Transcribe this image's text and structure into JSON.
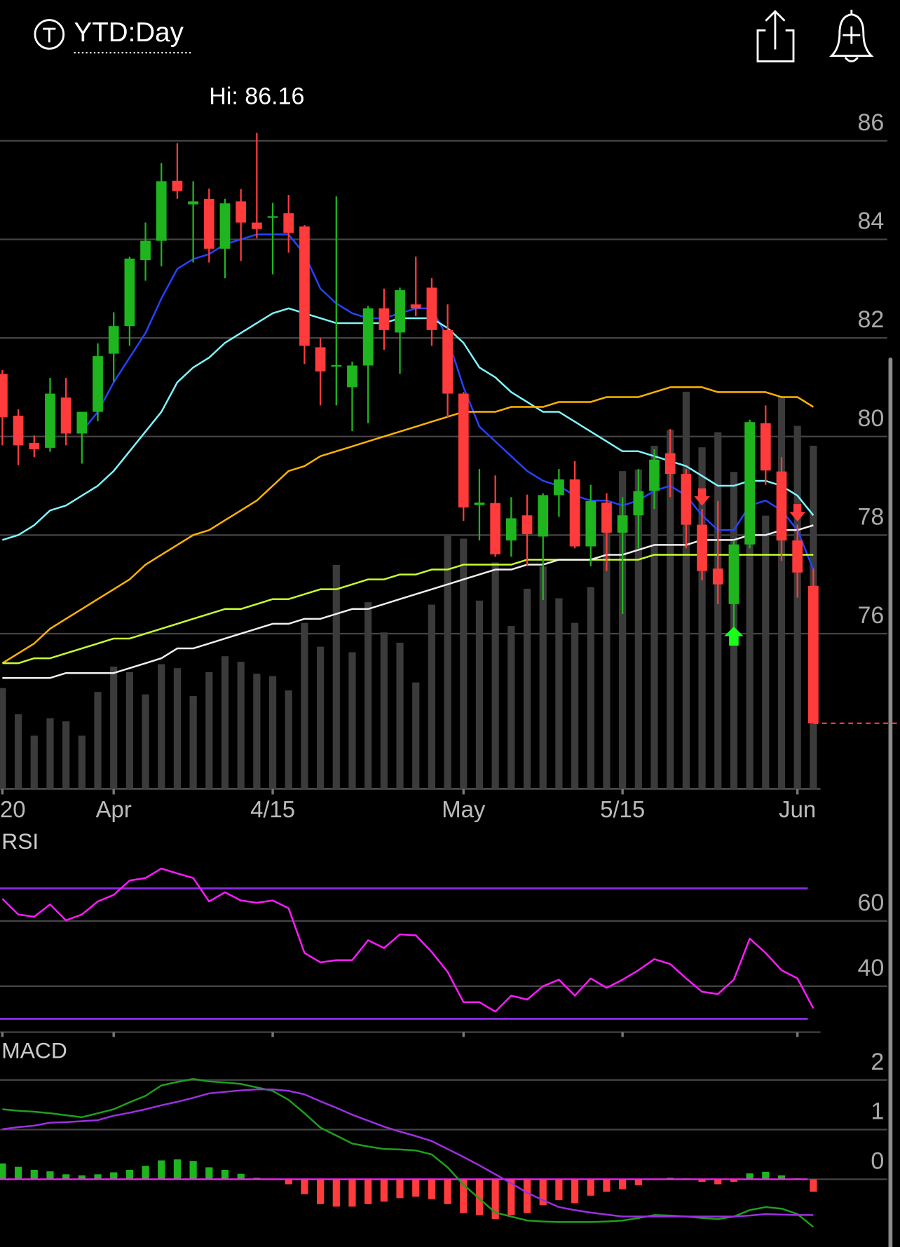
{
  "header": {
    "range_label": "YTD:Day"
  },
  "chart_data": [
    {
      "type": "candlestick",
      "hi_label": "Hi: 86.16",
      "categories": [
        "20",
        null,
        null,
        null,
        null,
        null,
        null,
        "Apr",
        null,
        null,
        null,
        null,
        null,
        null,
        null,
        null,
        null,
        "4/15",
        null,
        null,
        null,
        null,
        null,
        null,
        null,
        null,
        null,
        null,
        null,
        "May",
        null,
        null,
        null,
        null,
        null,
        null,
        null,
        null,
        null,
        "5/15",
        null,
        null,
        null,
        null,
        null,
        null,
        null,
        null,
        null,
        null,
        "Jun",
        null
      ],
      "open": [
        81.27,
        80.42,
        79.87,
        79.77,
        80.79,
        80.06,
        80.5,
        81.68,
        82.24,
        83.58,
        83.97,
        85.19,
        84.71,
        84.82,
        83.81,
        84.77,
        84.34,
        84.44,
        84.53,
        84.26,
        81.81,
        81.42,
        81.0,
        81.44,
        82.6,
        82.11,
        82.68,
        83.02,
        82.16,
        80.87,
        78.61,
        78.65,
        77.89,
        78.4,
        77.97,
        78.81,
        79.13,
        77.77,
        78.66,
        78.05,
        78.4,
        78.9,
        79.66,
        79.24,
        78.21,
        77.32,
        76.6,
        77.81,
        80.27,
        79.29,
        77.89,
        76.97
      ],
      "high": [
        81.35,
        80.55,
        80.02,
        81.19,
        81.19,
        80.5,
        81.89,
        82.52,
        83.65,
        84.34,
        85.55,
        85.95,
        85.18,
        85.03,
        84.82,
        85.02,
        86.16,
        84.74,
        84.9,
        84.29,
        82.0,
        84.87,
        81.52,
        82.65,
        83.0,
        83.02,
        83.65,
        83.21,
        82.68,
        80.9,
        79.34,
        79.21,
        78.77,
        78.82,
        78.85,
        79.34,
        79.5,
        79.02,
        78.85,
        78.77,
        79.34,
        79.74,
        80.15,
        79.34,
        78.53,
        78.69,
        77.89,
        80.34,
        80.63,
        79.58,
        78.21,
        77.32
      ],
      "low": [
        79.82,
        79.42,
        79.58,
        79.69,
        79.82,
        79.45,
        80.31,
        81.11,
        81.84,
        83.16,
        83.45,
        84.82,
        83.53,
        83.53,
        83.21,
        83.56,
        84.02,
        83.29,
        83.73,
        81.47,
        80.63,
        80.63,
        80.11,
        80.27,
        81.76,
        81.27,
        82.44,
        81.84,
        80.39,
        78.29,
        77.89,
        77.56,
        77.56,
        77.37,
        76.68,
        78.37,
        77.73,
        77.37,
        77.27,
        76.4,
        77.73,
        78.53,
        78.77,
        77.73,
        77.08,
        76.6,
        75.95,
        77.73,
        79.02,
        77.48,
        76.73,
        74.18
      ],
      "close": [
        80.39,
        79.82,
        79.74,
        80.87,
        80.06,
        80.5,
        81.63,
        82.24,
        83.61,
        83.97,
        85.18,
        84.98,
        84.77,
        83.81,
        84.73,
        84.34,
        84.21,
        84.47,
        84.13,
        81.84,
        81.32,
        81.45,
        81.44,
        82.6,
        82.16,
        82.97,
        82.6,
        82.16,
        80.87,
        78.56,
        78.66,
        77.61,
        78.34,
        78.02,
        78.81,
        79.13,
        77.77,
        78.69,
        78.05,
        78.4,
        78.89,
        79.53,
        79.24,
        78.21,
        77.27,
        77.0,
        77.81,
        80.29,
        79.31,
        77.89,
        77.24,
        74.18
      ],
      "volume": [
        127,
        94,
        67,
        89,
        85,
        67,
        122,
        154,
        147,
        119,
        157,
        152,
        117,
        147,
        167,
        160,
        145,
        142,
        124,
        209,
        179,
        282,
        172,
        235,
        197,
        184,
        134,
        232,
        320,
        315,
        237,
        285,
        205,
        252,
        280,
        240,
        209,
        254,
        337,
        400,
        402,
        432,
        452,
        500,
        430,
        449,
        399,
        462,
        344,
        494,
        457,
        432
      ],
      "up_color": "#1fb51f",
      "down_color": "#ff3b3b",
      "volume_color": "#3b3b3b",
      "moving_averages": [
        {
          "color": "#2443ff",
          "values": [
            null,
            null,
            null,
            null,
            null,
            80.1,
            80.5,
            81.1,
            81.6,
            82.1,
            82.8,
            83.4,
            83.6,
            83.7,
            83.9,
            84.0,
            84.1,
            84.1,
            84.1,
            83.7,
            83.0,
            82.7,
            82.5,
            82.4,
            82.4,
            82.5,
            82.6,
            82.6,
            82.0,
            81.0,
            80.2,
            79.9,
            79.6,
            79.3,
            79.1,
            79.0,
            78.8,
            78.7,
            78.7,
            78.6,
            78.7,
            78.9,
            79.0,
            78.8,
            78.4,
            78.1,
            78.1,
            78.6,
            78.7,
            78.5,
            78.1,
            77.3
          ]
        },
        {
          "color": "#7ff5ff",
          "values": [
            77.9,
            78.0,
            78.2,
            78.5,
            78.6,
            78.8,
            79.0,
            79.3,
            79.7,
            80.1,
            80.5,
            81.1,
            81.4,
            81.6,
            81.9,
            82.1,
            82.3,
            82.5,
            82.6,
            82.5,
            82.4,
            82.3,
            82.3,
            82.3,
            82.3,
            82.4,
            82.4,
            82.4,
            82.2,
            81.9,
            81.4,
            81.2,
            80.9,
            80.7,
            80.5,
            80.5,
            80.3,
            80.1,
            79.9,
            79.7,
            79.7,
            79.6,
            79.5,
            79.4,
            79.2,
            79.0,
            79.0,
            79.1,
            79.1,
            79.0,
            78.8,
            78.4
          ]
        },
        {
          "color": "#ffb300",
          "values": [
            75.4,
            75.6,
            75.8,
            76.1,
            76.3,
            76.5,
            76.7,
            76.9,
            77.1,
            77.4,
            77.6,
            77.8,
            78.0,
            78.1,
            78.3,
            78.5,
            78.7,
            79.0,
            79.3,
            79.4,
            79.6,
            79.7,
            79.8,
            79.9,
            80.0,
            80.1,
            80.2,
            80.3,
            80.4,
            80.5,
            80.5,
            80.5,
            80.6,
            80.6,
            80.6,
            80.7,
            80.7,
            80.7,
            80.8,
            80.8,
            80.8,
            80.9,
            81.0,
            81.0,
            81.0,
            80.9,
            80.9,
            80.9,
            80.9,
            80.8,
            80.8,
            80.6
          ]
        },
        {
          "color": "#c8ff2e",
          "values": [
            75.4,
            75.4,
            75.5,
            75.5,
            75.6,
            75.7,
            75.8,
            75.9,
            75.9,
            76.0,
            76.1,
            76.2,
            76.3,
            76.4,
            76.5,
            76.5,
            76.6,
            76.7,
            76.7,
            76.8,
            76.9,
            76.9,
            77.0,
            77.1,
            77.1,
            77.2,
            77.2,
            77.3,
            77.3,
            77.4,
            77.4,
            77.4,
            77.4,
            77.5,
            77.5,
            77.5,
            77.5,
            77.5,
            77.5,
            77.5,
            77.5,
            77.6,
            77.6,
            77.6,
            77.6,
            77.6,
            77.6,
            77.6,
            77.6,
            77.6,
            77.6,
            77.6
          ]
        },
        {
          "color": "#f0f0f0",
          "values": [
            75.1,
            75.1,
            75.1,
            75.1,
            75.2,
            75.2,
            75.2,
            75.2,
            75.3,
            75.4,
            75.5,
            75.7,
            75.7,
            75.8,
            75.9,
            76.0,
            76.1,
            76.2,
            76.2,
            76.3,
            76.3,
            76.4,
            76.5,
            76.5,
            76.6,
            76.7,
            76.8,
            76.9,
            77.0,
            77.1,
            77.2,
            77.3,
            77.3,
            77.4,
            77.4,
            77.5,
            77.5,
            77.5,
            77.6,
            77.6,
            77.7,
            77.8,
            77.8,
            77.8,
            77.9,
            77.9,
            77.9,
            78.0,
            78.0,
            78.1,
            78.1,
            78.2
          ]
        }
      ],
      "sell_signals": [
        44,
        50
      ],
      "buy_signals": [
        46
      ],
      "ylim": [
        72.85,
        87.24
      ],
      "yticks": [
        76,
        78,
        80,
        82,
        84,
        86
      ],
      "grid": true
    },
    {
      "type": "rsi",
      "title": "RSI",
      "series": [
        {
          "color": "#ff1aff",
          "values": [
            66.8,
            62,
            61.3,
            65.1,
            60.2,
            62,
            66,
            68,
            72.4,
            73.2,
            76.1,
            74.6,
            73.2,
            66,
            68.8,
            66.3,
            65.6,
            66.3,
            63.9,
            50.2,
            47.3,
            48,
            48,
            54.1,
            51.7,
            55.9,
            55.6,
            50.5,
            44.4,
            35.1,
            35.1,
            32.2,
            37.1,
            35.9,
            40,
            42,
            37.1,
            42.4,
            39.5,
            42,
            44.9,
            48.3,
            46.8,
            42.4,
            38.3,
            37.6,
            42,
            54.6,
            50.2,
            44.9,
            42.4,
            33.2
          ]
        }
      ],
      "bands": [
        70,
        30
      ],
      "band_color": "#8a2be2",
      "ylim": [
        25.9,
        87.6
      ],
      "yticks": [
        40,
        60
      ],
      "grid": true
    },
    {
      "type": "macd",
      "title": "MACD",
      "series": [
        {
          "color": "#1f9e1f",
          "values": [
            1.41,
            1.38,
            1.36,
            1.33,
            1.29,
            1.25,
            1.33,
            1.41,
            1.55,
            1.68,
            1.89,
            1.96,
            2.02,
            1.97,
            1.95,
            1.92,
            1.85,
            1.78,
            1.6,
            1.33,
            1.04,
            0.88,
            0.72,
            0.66,
            0.61,
            0.6,
            0.58,
            0.5,
            0.24,
            -0.11,
            -0.39,
            -0.67,
            -0.75,
            -0.83,
            -0.85,
            -0.86,
            -0.86,
            -0.86,
            -0.85,
            -0.83,
            -0.78,
            -0.72,
            -0.73,
            -0.75,
            -0.78,
            -0.8,
            -0.75,
            -0.62,
            -0.56,
            -0.59,
            -0.7,
            -0.96
          ]
        },
        {
          "color": "#9b30e0",
          "values": [
            1.01,
            1.05,
            1.08,
            1.14,
            1.15,
            1.17,
            1.19,
            1.28,
            1.34,
            1.41,
            1.49,
            1.56,
            1.64,
            1.73,
            1.76,
            1.79,
            1.81,
            1.81,
            1.78,
            1.71,
            1.57,
            1.44,
            1.3,
            1.18,
            1.06,
            0.96,
            0.87,
            0.77,
            0.61,
            0.45,
            0.28,
            0.1,
            -0.08,
            -0.27,
            -0.42,
            -0.56,
            -0.62,
            -0.67,
            -0.71,
            -0.75,
            -0.75,
            -0.75,
            -0.75,
            -0.75,
            -0.75,
            -0.75,
            -0.75,
            -0.73,
            -0.7,
            -0.71,
            -0.72,
            -0.72
          ]
        }
      ],
      "histogram": [
        0.32,
        0.25,
        0.19,
        0.16,
        0.1,
        0.08,
        0.1,
        0.14,
        0.19,
        0.27,
        0.38,
        0.4,
        0.37,
        0.24,
        0.19,
        0.11,
        0.03,
        0,
        -0.1,
        -0.3,
        -0.5,
        -0.55,
        -0.55,
        -0.5,
        -0.45,
        -0.38,
        -0.35,
        -0.4,
        -0.5,
        -0.68,
        -0.72,
        -0.8,
        -0.72,
        -0.68,
        -0.52,
        -0.42,
        -0.48,
        -0.33,
        -0.25,
        -0.2,
        -0.12,
        0,
        0.03,
        0.02,
        -0.05,
        -0.1,
        -0.05,
        0.12,
        0.15,
        0.08,
        0.02,
        -0.25
      ],
      "up_color": "#1fb51f",
      "down_color": "#ff3b3b",
      "baseline_color": "#ff1aff",
      "ylim": [
        -1.36,
        2.85
      ],
      "yticks": [
        0,
        1,
        2
      ],
      "grid": true
    }
  ]
}
